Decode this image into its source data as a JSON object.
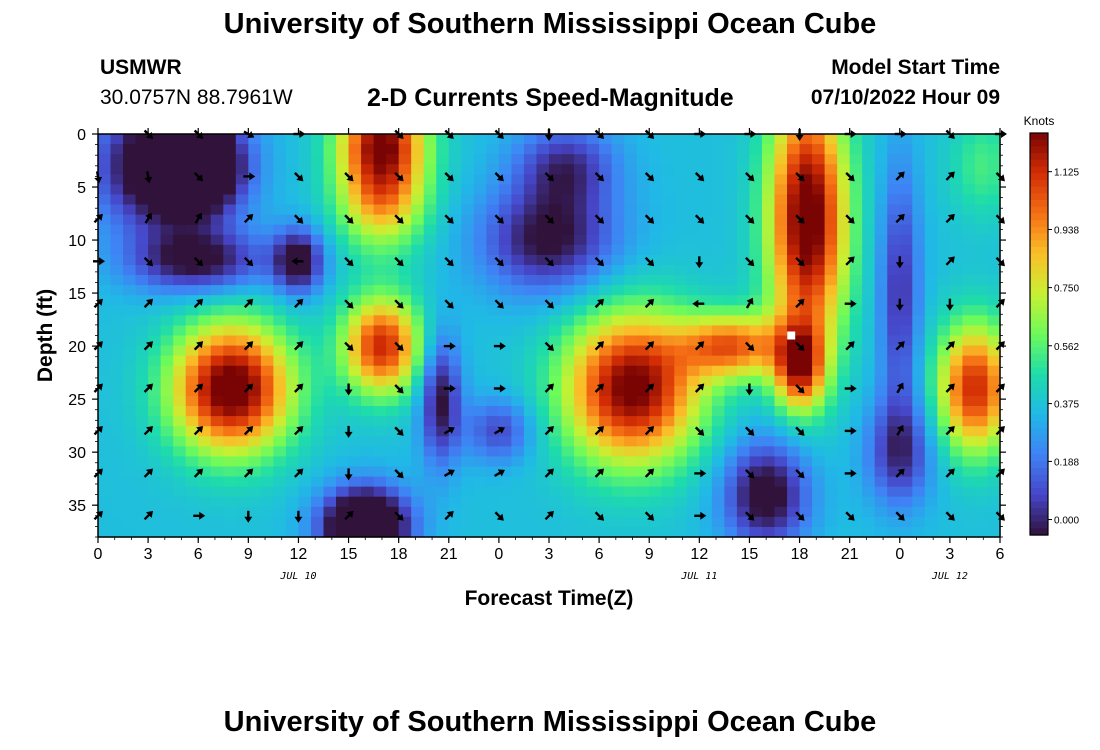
{
  "header": {
    "title": "University of Southern Mississippi Ocean Cube",
    "station": "USMWR",
    "coords": "30.0757N  88.7961W",
    "plot_title": "2-D Currents Speed-Magnitude",
    "model_label": "Model Start Time",
    "model_time": "07/10/2022 Hour 09"
  },
  "footer": {
    "title": "University of Southern Mississippi Ocean Cube"
  },
  "chart_data": {
    "type": "heatmap",
    "title": "2-D Currents Speed-Magnitude",
    "xlabel": "Forecast Time(Z)",
    "ylabel": "Depth (ft)",
    "x_hours": [
      0,
      3,
      6,
      9,
      12,
      15,
      18,
      21,
      24,
      27,
      30,
      33,
      36,
      39,
      42,
      45,
      48,
      51,
      54
    ],
    "x_tick_labels": [
      "0",
      "3",
      "6",
      "9",
      "12",
      "15",
      "18",
      "21",
      "0",
      "3",
      "6",
      "9",
      "12",
      "15",
      "18",
      "21",
      "0",
      "3",
      "6"
    ],
    "xlim": [
      0,
      54
    ],
    "date_labels": [
      {
        "hour": 12,
        "label": "JUL 10"
      },
      {
        "hour": 36,
        "label": "JUL 11"
      },
      {
        "hour": 51,
        "label": "JUL 12"
      }
    ],
    "y_ticks": [
      0,
      5,
      10,
      15,
      20,
      25,
      30,
      35
    ],
    "ylim": [
      0,
      38
    ],
    "y_reversed": true,
    "colorbar": {
      "label": "Knots",
      "ticks": [
        0.0,
        0.188,
        0.375,
        0.562,
        0.75,
        0.938,
        1.125
      ],
      "tick_labels": [
        "0.000",
        "0.188",
        "0.375",
        "0.562",
        "0.750",
        "0.938",
        "1.125"
      ],
      "range": [
        -0.05,
        1.25
      ]
    },
    "speed_cores": [
      {
        "hour": 4,
        "depth": 3,
        "knots": -0.45,
        "sx": 4,
        "sd": 6
      },
      {
        "hour": 17,
        "depth": 4,
        "knots": 0.9,
        "sx": 2.6,
        "sd": 6
      },
      {
        "hour": 17,
        "depth": 0,
        "knots": 0.5,
        "sx": 2.5,
        "sd": 3
      },
      {
        "hour": 8,
        "depth": 24,
        "knots": 1.1,
        "sx": 3.5,
        "sd": 6
      },
      {
        "hour": 17,
        "depth": 20,
        "knots": 0.9,
        "sx": 2.3,
        "sd": 4.5
      },
      {
        "hour": 16,
        "depth": 37,
        "knots": -0.7,
        "sx": 2.5,
        "sd": 3.5
      },
      {
        "hour": 6,
        "depth": 12,
        "knots": -0.3,
        "sx": 4,
        "sd": 3
      },
      {
        "hour": 12,
        "depth": 12,
        "knots": -0.35,
        "sx": 1.5,
        "sd": 3
      },
      {
        "hour": 20.5,
        "depth": 25,
        "knots": -0.3,
        "sx": 1.2,
        "sd": 6
      },
      {
        "hour": 24,
        "depth": 28,
        "knots": -0.15,
        "sx": 2,
        "sd": 3
      },
      {
        "hour": 6,
        "depth": 3,
        "knots": -0.45,
        "sx": 2.5,
        "sd": 4
      },
      {
        "hour": 27,
        "depth": 10,
        "knots": -0.3,
        "sx": 4,
        "sd": 5
      },
      {
        "hour": 32,
        "depth": 24,
        "knots": 1.05,
        "sx": 4,
        "sd": 7
      },
      {
        "hour": 38,
        "depth": 20,
        "knots": 0.75,
        "sx": 3,
        "sd": 3
      },
      {
        "hour": 42.5,
        "depth": 8,
        "knots": 1.1,
        "sx": 2.3,
        "sd": 12
      },
      {
        "hour": 42,
        "depth": 22,
        "knots": 0.8,
        "sx": 1.5,
        "sd": 4
      },
      {
        "hour": 40,
        "depth": 34,
        "knots": -0.35,
        "sx": 2.5,
        "sd": 5
      },
      {
        "hour": 48,
        "depth": 15,
        "knots": -0.2,
        "sx": 1.2,
        "sd": 12
      },
      {
        "hour": 53,
        "depth": 3,
        "knots": 0.3,
        "sx": 2,
        "sd": 5
      },
      {
        "hour": 52.5,
        "depth": 24,
        "knots": 0.9,
        "sx": 2.2,
        "sd": 6
      },
      {
        "hour": 48,
        "depth": 30,
        "knots": -0.2,
        "sx": 2,
        "sd": 5
      },
      {
        "hour": 28,
        "depth": 3,
        "knots": -0.2,
        "sx": 3,
        "sd": 4
      }
    ],
    "arrow_hours": [
      0,
      3,
      6,
      9,
      12,
      15,
      18,
      21,
      24,
      27,
      30,
      33,
      36,
      39,
      42,
      45,
      48,
      51,
      54
    ],
    "arrow_depths": [
      0,
      4,
      8,
      12,
      16,
      20,
      24,
      28,
      32,
      36
    ],
    "arrow_directions_deg": [
      [
        null,
        45,
        45,
        30,
        0,
        null,
        45,
        45,
        45,
        90,
        45,
        45,
        0,
        0,
        90,
        0,
        0,
        45,
        0
      ],
      [
        80,
        80,
        45,
        0,
        45,
        45,
        45,
        45,
        45,
        45,
        45,
        45,
        45,
        45,
        45,
        45,
        -45,
        -45,
        45
      ],
      [
        -45,
        -60,
        -60,
        -45,
        45,
        45,
        45,
        45,
        45,
        45,
        45,
        45,
        45,
        45,
        45,
        45,
        -45,
        -45,
        45
      ],
      [
        0,
        45,
        45,
        45,
        180,
        45,
        45,
        45,
        45,
        45,
        45,
        45,
        90,
        45,
        45,
        -45,
        90,
        -45,
        45
      ],
      [
        -45,
        -45,
        -45,
        -45,
        -45,
        45,
        45,
        45,
        45,
        45,
        -45,
        -45,
        180,
        -60,
        -45,
        0,
        90,
        90,
        -45
      ],
      [
        -45,
        -45,
        -45,
        -45,
        -45,
        45,
        45,
        0,
        0,
        45,
        -45,
        -45,
        -45,
        45,
        45,
        -45,
        -45,
        -45,
        -45
      ],
      [
        -45,
        -45,
        -45,
        -45,
        -45,
        90,
        45,
        0,
        0,
        -45,
        -45,
        -45,
        -45,
        90,
        45,
        0,
        -60,
        -45,
        -45
      ],
      [
        -45,
        -45,
        -45,
        -45,
        -45,
        90,
        45,
        -30,
        -30,
        -45,
        -45,
        -45,
        45,
        45,
        45,
        0,
        -60,
        -45,
        -45
      ],
      [
        -45,
        -45,
        -45,
        -45,
        -45,
        90,
        45,
        -30,
        -30,
        -45,
        -45,
        -45,
        0,
        45,
        45,
        0,
        -45,
        -45,
        -45
      ],
      [
        -45,
        -45,
        0,
        90,
        90,
        -45,
        45,
        -45,
        45,
        -45,
        45,
        45,
        0,
        45,
        45,
        45,
        45,
        45,
        45
      ]
    ],
    "marker": {
      "hour": 41.5,
      "depth": 19
    }
  }
}
